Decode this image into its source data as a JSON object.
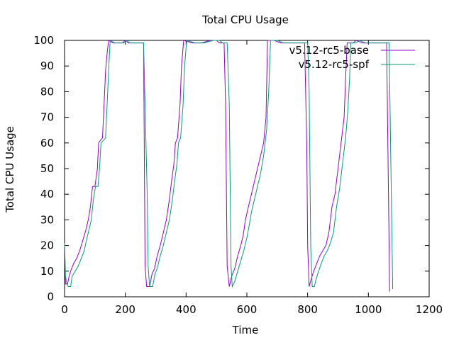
{
  "chart_data": {
    "type": "line",
    "title": "Total CPU Usage",
    "xlabel": "Time",
    "ylabel": "Total CPU Usage",
    "xlim": [
      0,
      1200
    ],
    "ylim": [
      0,
      100
    ],
    "xticks": [
      0,
      200,
      400,
      600,
      800,
      1000,
      1200
    ],
    "yticks": [
      0,
      10,
      20,
      30,
      40,
      50,
      60,
      70,
      80,
      90,
      100
    ],
    "grid": false,
    "legend_position": "top-right",
    "series": [
      {
        "name": "v5.12-rc5-base",
        "color": "#9400d3",
        "points": [
          [
            0,
            21
          ],
          [
            3,
            5
          ],
          [
            10,
            5
          ],
          [
            15,
            8
          ],
          [
            20,
            10
          ],
          [
            30,
            13
          ],
          [
            40,
            15
          ],
          [
            50,
            18
          ],
          [
            60,
            22
          ],
          [
            70,
            26
          ],
          [
            78,
            30
          ],
          [
            85,
            35
          ],
          [
            92,
            43
          ],
          [
            100,
            43
          ],
          [
            108,
            50
          ],
          [
            112,
            60
          ],
          [
            118,
            61
          ],
          [
            125,
            62
          ],
          [
            130,
            75
          ],
          [
            135,
            88
          ],
          [
            140,
            95
          ],
          [
            145,
            100
          ],
          [
            160,
            99
          ],
          [
            175,
            99
          ],
          [
            190,
            99
          ],
          [
            200,
            100
          ],
          [
            210,
            99
          ],
          [
            220,
            99
          ],
          [
            230,
            99
          ],
          [
            240,
            99
          ],
          [
            250,
            99
          ],
          [
            260,
            99
          ],
          [
            265,
            12
          ],
          [
            270,
            4
          ],
          [
            280,
            4
          ],
          [
            288,
            9
          ],
          [
            296,
            11
          ],
          [
            305,
            16
          ],
          [
            315,
            20
          ],
          [
            325,
            25
          ],
          [
            335,
            30
          ],
          [
            345,
            38
          ],
          [
            352,
            45
          ],
          [
            360,
            52
          ],
          [
            365,
            60
          ],
          [
            372,
            62
          ],
          [
            380,
            75
          ],
          [
            385,
            90
          ],
          [
            392,
            100
          ],
          [
            420,
            99
          ],
          [
            450,
            99
          ],
          [
            480,
            100
          ],
          [
            500,
            100
          ],
          [
            510,
            99
          ],
          [
            525,
            99
          ],
          [
            530,
            75
          ],
          [
            535,
            12
          ],
          [
            542,
            4
          ],
          [
            550,
            8
          ],
          [
            560,
            11
          ],
          [
            570,
            16
          ],
          [
            580,
            20
          ],
          [
            588,
            24
          ],
          [
            595,
            30
          ],
          [
            605,
            35
          ],
          [
            615,
            40
          ],
          [
            625,
            45
          ],
          [
            635,
            50
          ],
          [
            645,
            55
          ],
          [
            655,
            60
          ],
          [
            663,
            70
          ],
          [
            668,
            100
          ],
          [
            690,
            100
          ],
          [
            710,
            99
          ],
          [
            730,
            99
          ],
          [
            750,
            99
          ],
          [
            770,
            99
          ],
          [
            790,
            99
          ],
          [
            797,
            60
          ],
          [
            800,
            20
          ],
          [
            805,
            4
          ],
          [
            812,
            7
          ],
          [
            820,
            10
          ],
          [
            830,
            13
          ],
          [
            840,
            16
          ],
          [
            850,
            18
          ],
          [
            860,
            20
          ],
          [
            870,
            25
          ],
          [
            880,
            35
          ],
          [
            890,
            40
          ],
          [
            900,
            50
          ],
          [
            910,
            60
          ],
          [
            920,
            70
          ],
          [
            925,
            85
          ],
          [
            930,
            99
          ],
          [
            950,
            99
          ],
          [
            960,
            100
          ],
          [
            980,
            99
          ],
          [
            1000,
            99
          ],
          [
            1020,
            99
          ],
          [
            1040,
            99
          ],
          [
            1060,
            99
          ],
          [
            1070,
            2
          ]
        ]
      },
      {
        "name": "v5.12-rc5-spf",
        "color": "#009e73",
        "points": [
          [
            0,
            21
          ],
          [
            3,
            8
          ],
          [
            8,
            5
          ],
          [
            12,
            4
          ],
          [
            20,
            4
          ],
          [
            25,
            8
          ],
          [
            35,
            10
          ],
          [
            45,
            12
          ],
          [
            55,
            15
          ],
          [
            65,
            18
          ],
          [
            72,
            22
          ],
          [
            80,
            26
          ],
          [
            88,
            30
          ],
          [
            95,
            38
          ],
          [
            102,
            43
          ],
          [
            110,
            43
          ],
          [
            115,
            50
          ],
          [
            120,
            60
          ],
          [
            128,
            61
          ],
          [
            135,
            62
          ],
          [
            140,
            75
          ],
          [
            145,
            88
          ],
          [
            150,
            100
          ],
          [
            165,
            99
          ],
          [
            180,
            99
          ],
          [
            195,
            99
          ],
          [
            205,
            100
          ],
          [
            215,
            99
          ],
          [
            225,
            99
          ],
          [
            235,
            99
          ],
          [
            245,
            99
          ],
          [
            260,
            99
          ],
          [
            272,
            40
          ],
          [
            275,
            12
          ],
          [
            280,
            4
          ],
          [
            290,
            4
          ],
          [
            298,
            9
          ],
          [
            305,
            11
          ],
          [
            315,
            16
          ],
          [
            325,
            20
          ],
          [
            335,
            25
          ],
          [
            345,
            30
          ],
          [
            355,
            38
          ],
          [
            362,
            45
          ],
          [
            370,
            52
          ],
          [
            375,
            60
          ],
          [
            382,
            62
          ],
          [
            390,
            75
          ],
          [
            395,
            90
          ],
          [
            402,
            100
          ],
          [
            430,
            99
          ],
          [
            460,
            99
          ],
          [
            490,
            100
          ],
          [
            510,
            100
          ],
          [
            520,
            99
          ],
          [
            535,
            99
          ],
          [
            542,
            75
          ],
          [
            548,
            12
          ],
          [
            552,
            4
          ],
          [
            560,
            6
          ],
          [
            570,
            10
          ],
          [
            580,
            14
          ],
          [
            590,
            18
          ],
          [
            600,
            23
          ],
          [
            608,
            28
          ],
          [
            615,
            33
          ],
          [
            625,
            38
          ],
          [
            635,
            43
          ],
          [
            645,
            48
          ],
          [
            655,
            55
          ],
          [
            665,
            65
          ],
          [
            672,
            80
          ],
          [
            678,
            100
          ],
          [
            700,
            100
          ],
          [
            720,
            99
          ],
          [
            740,
            99
          ],
          [
            760,
            99
          ],
          [
            780,
            99
          ],
          [
            800,
            99
          ],
          [
            805,
            80
          ],
          [
            810,
            20
          ],
          [
            815,
            4
          ],
          [
            822,
            4
          ],
          [
            828,
            7
          ],
          [
            836,
            10
          ],
          [
            845,
            13
          ],
          [
            855,
            16
          ],
          [
            865,
            18
          ],
          [
            875,
            21
          ],
          [
            885,
            25
          ],
          [
            895,
            35
          ],
          [
            905,
            42
          ],
          [
            915,
            52
          ],
          [
            925,
            62
          ],
          [
            932,
            72
          ],
          [
            938,
            85
          ],
          [
            942,
            99
          ],
          [
            960,
            99
          ],
          [
            970,
            100
          ],
          [
            990,
            99
          ],
          [
            1010,
            99
          ],
          [
            1030,
            99
          ],
          [
            1050,
            99
          ],
          [
            1068,
            99
          ],
          [
            1080,
            3
          ]
        ]
      }
    ]
  }
}
